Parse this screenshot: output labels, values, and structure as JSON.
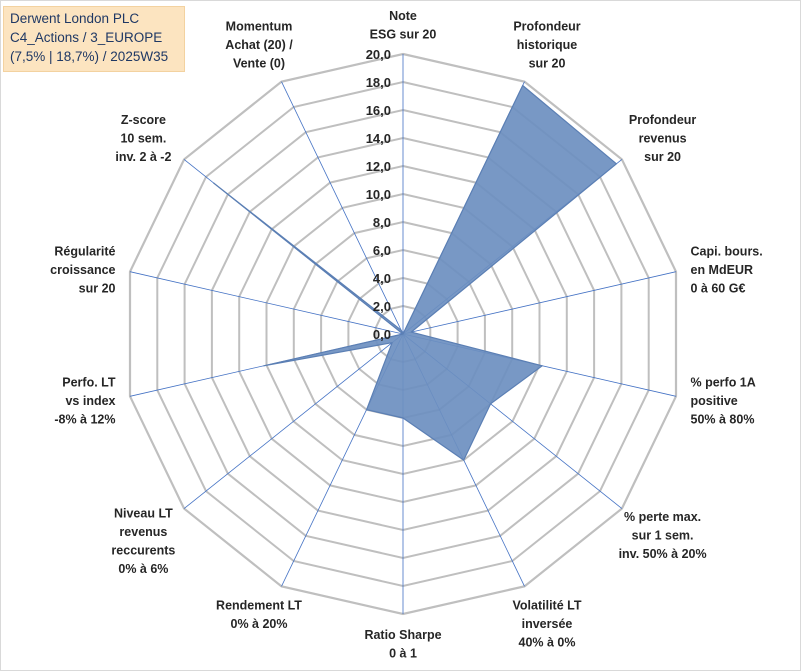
{
  "title_lines": [
    "Derwent London PLC",
    "C4_Actions / 3_EUROPE",
    "(7,5% | 18,7%) / 2025W35"
  ],
  "chart_data": {
    "type": "radar",
    "rmin": 0,
    "rmax": 20,
    "tick_step": 2,
    "tick_labels": [
      "0,0",
      "2,0",
      "4,0",
      "6,0",
      "8,0",
      "10,0",
      "12,0",
      "14,0",
      "16,0",
      "18,0",
      "20,0"
    ],
    "axes": [
      [
        "Note",
        "ESG sur 20"
      ],
      [
        "Profondeur",
        "historique",
        "sur 20"
      ],
      [
        "Profondeur",
        "revenus",
        "sur 20"
      ],
      [
        "Capi. bours.",
        "en MdEUR",
        "0 à 60 G€"
      ],
      [
        "% perfo 1A",
        "positive",
        "50% à 80%"
      ],
      [
        "% perte max.",
        "sur 1 sem.",
        "inv. 50% à 20%"
      ],
      [
        "Volatilité LT",
        "inversée",
        "40% à 0%"
      ],
      [
        "Ratio Sharpe",
        "0 à 1"
      ],
      [
        "Rendement LT",
        "0% à 20%"
      ],
      [
        "Niveau LT",
        "revenus",
        "reccurents",
        "0% à 6%"
      ],
      [
        "Perfo. LT",
        "vs index",
        "-8% à 12%"
      ],
      [
        "Régularité",
        "croissance",
        "sur 20"
      ],
      [
        "Z-score",
        "10 sem.",
        "inv. 2 à -2"
      ],
      [
        "Momentum",
        "Achat (20) /",
        "Vente (0)"
      ]
    ],
    "values": [
      0,
      19.7,
      19.5,
      0.6,
      10.2,
      8.0,
      10.0,
      6.0,
      6.0,
      1.0,
      10.2,
      0.0,
      17.3,
      0.3
    ],
    "colors": {
      "fill": "#6d8fc0",
      "stroke": "#5b7fb4",
      "grid": "#bfbfbf",
      "spoke": "#4472c4"
    }
  }
}
